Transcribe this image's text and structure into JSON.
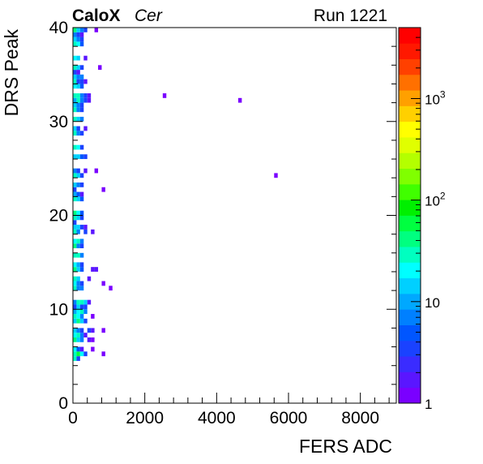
{
  "header": {
    "experiment": "CaloX",
    "channel": "Cer",
    "run": "Run 1221"
  },
  "chart_data": {
    "type": "heatmap",
    "xlabel": "FERS ADC",
    "ylabel": "DRS Peak",
    "xlim": [
      0,
      9000
    ],
    "ylim": [
      0,
      40
    ],
    "xticks": [
      "0",
      "2000",
      "4000",
      "6000",
      "8000"
    ],
    "yticks": [
      "0",
      "10",
      "20",
      "30",
      "40"
    ],
    "x_bin_width": 100,
    "y_bin_width": 0.5,
    "color_scale": "log",
    "z_range": [
      1,
      5000
    ],
    "colorbar_labels": [
      {
        "value": 1,
        "base": "1",
        "exp": ""
      },
      {
        "value": 10,
        "base": "10",
        "exp": ""
      },
      {
        "value": 100,
        "base": "10",
        "exp": "2"
      },
      {
        "value": 1000,
        "base": "10",
        "exp": "3"
      }
    ],
    "palette": [
      "#7a00ff",
      "#5a16ff",
      "#3a2cff",
      "#1a42ff",
      "#0056ff",
      "#0080ff",
      "#00a8ff",
      "#00d0ff",
      "#00ffff",
      "#00ffc0",
      "#00ff80",
      "#00ff40",
      "#00f000",
      "#40ff00",
      "#80ff00",
      "#b4ff00",
      "#e0ff00",
      "#ffff00",
      "#ffd000",
      "#ffa000",
      "#ff7000",
      "#ff4000",
      "#ff1800",
      "#ff0000"
    ],
    "cells": [
      {
        "x": 0,
        "y": 4.5,
        "v": 25
      },
      {
        "x": 100,
        "y": 4.5,
        "v": 3
      },
      {
        "x": 0,
        "y": 5,
        "v": 30
      },
      {
        "x": 100,
        "y": 5,
        "v": 60
      },
      {
        "x": 200,
        "y": 5,
        "v": 20
      },
      {
        "x": 300,
        "y": 5,
        "v": 3
      },
      {
        "x": 800,
        "y": 5,
        "v": 1
      },
      {
        "x": 0,
        "y": 5.5,
        "v": 20
      },
      {
        "x": 100,
        "y": 5.5,
        "v": 5
      },
      {
        "x": 200,
        "y": 5.5,
        "v": 2
      },
      {
        "x": 500,
        "y": 5.5,
        "v": 1
      },
      {
        "x": 0,
        "y": 6.5,
        "v": 40
      },
      {
        "x": 100,
        "y": 6.5,
        "v": 15
      },
      {
        "x": 200,
        "y": 6.5,
        "v": 8
      },
      {
        "x": 400,
        "y": 6.5,
        "v": 2
      },
      {
        "x": 500,
        "y": 6.5,
        "v": 1
      },
      {
        "x": 0,
        "y": 7,
        "v": 20
      },
      {
        "x": 100,
        "y": 7,
        "v": 25
      },
      {
        "x": 200,
        "y": 7,
        "v": 6
      },
      {
        "x": 300,
        "y": 7,
        "v": 2
      },
      {
        "x": 0,
        "y": 7.5,
        "v": 12
      },
      {
        "x": 100,
        "y": 7.5,
        "v": 8
      },
      {
        "x": 200,
        "y": 7.5,
        "v": 4
      },
      {
        "x": 400,
        "y": 7.5,
        "v": 3
      },
      {
        "x": 500,
        "y": 7.5,
        "v": 2
      },
      {
        "x": 800,
        "y": 7.5,
        "v": 1
      },
      {
        "x": 0,
        "y": 8.5,
        "v": 15
      },
      {
        "x": 100,
        "y": 8.5,
        "v": 40
      },
      {
        "x": 200,
        "y": 8.5,
        "v": 15
      },
      {
        "x": 300,
        "y": 8.5,
        "v": 4
      },
      {
        "x": 0,
        "y": 9,
        "v": 25
      },
      {
        "x": 100,
        "y": 9,
        "v": 20
      },
      {
        "x": 200,
        "y": 9,
        "v": 8
      },
      {
        "x": 500,
        "y": 9,
        "v": 1
      },
      {
        "x": 0,
        "y": 9.5,
        "v": 10
      },
      {
        "x": 100,
        "y": 9.5,
        "v": 20
      },
      {
        "x": 200,
        "y": 9.5,
        "v": 25
      },
      {
        "x": 300,
        "y": 9.5,
        "v": 6
      },
      {
        "x": 0,
        "y": 10,
        "v": 3
      },
      {
        "x": 100,
        "y": 10,
        "v": 12
      },
      {
        "x": 200,
        "y": 10,
        "v": 3
      },
      {
        "x": 300,
        "y": 10,
        "v": 4
      },
      {
        "x": 0,
        "y": 10.5,
        "v": 6
      },
      {
        "x": 100,
        "y": 10.5,
        "v": 30
      },
      {
        "x": 200,
        "y": 10.5,
        "v": 25
      },
      {
        "x": 300,
        "y": 10.5,
        "v": 15
      },
      {
        "x": 400,
        "y": 10.5,
        "v": 2
      },
      {
        "x": 0,
        "y": 12,
        "v": 25
      },
      {
        "x": 100,
        "y": 12,
        "v": 8
      },
      {
        "x": 200,
        "y": 12,
        "v": 6
      },
      {
        "x": 1000,
        "y": 12,
        "v": 1
      },
      {
        "x": 0,
        "y": 12.5,
        "v": 18
      },
      {
        "x": 100,
        "y": 12.5,
        "v": 6
      },
      {
        "x": 200,
        "y": 12.5,
        "v": 3
      },
      {
        "x": 800,
        "y": 12.5,
        "v": 1
      },
      {
        "x": 0,
        "y": 13,
        "v": 30
      },
      {
        "x": 100,
        "y": 13,
        "v": 12
      },
      {
        "x": 400,
        "y": 13,
        "v": 2
      },
      {
        "x": 0,
        "y": 14,
        "v": 35
      },
      {
        "x": 100,
        "y": 14,
        "v": 15
      },
      {
        "x": 200,
        "y": 14,
        "v": 5
      },
      {
        "x": 500,
        "y": 14,
        "v": 2
      },
      {
        "x": 600,
        "y": 14,
        "v": 2
      },
      {
        "x": 0,
        "y": 14.5,
        "v": 20
      },
      {
        "x": 100,
        "y": 14.5,
        "v": 10
      },
      {
        "x": 200,
        "y": 14.5,
        "v": 3
      },
      {
        "x": 0,
        "y": 15.5,
        "v": 25
      },
      {
        "x": 100,
        "y": 15.5,
        "v": 25
      },
      {
        "x": 200,
        "y": 15.5,
        "v": 8
      },
      {
        "x": 0,
        "y": 16.5,
        "v": 40
      },
      {
        "x": 100,
        "y": 16.5,
        "v": 8
      },
      {
        "x": 200,
        "y": 16.5,
        "v": 3
      },
      {
        "x": 0,
        "y": 17,
        "v": 20
      },
      {
        "x": 100,
        "y": 17,
        "v": 25
      },
      {
        "x": 200,
        "y": 17,
        "v": 6
      },
      {
        "x": 0,
        "y": 18,
        "v": 25
      },
      {
        "x": 100,
        "y": 18,
        "v": 6
      },
      {
        "x": 300,
        "y": 18,
        "v": 3
      },
      {
        "x": 500,
        "y": 18,
        "v": 2
      },
      {
        "x": 0,
        "y": 18.5,
        "v": 15
      },
      {
        "x": 100,
        "y": 18.5,
        "v": 12
      },
      {
        "x": 200,
        "y": 18.5,
        "v": 3
      },
      {
        "x": 300,
        "y": 18.5,
        "v": 2
      },
      {
        "x": 0,
        "y": 19,
        "v": 4
      },
      {
        "x": 0,
        "y": 19.5,
        "v": 30
      },
      {
        "x": 100,
        "y": 19.5,
        "v": 12
      },
      {
        "x": 200,
        "y": 19.5,
        "v": 4
      },
      {
        "x": 0,
        "y": 20,
        "v": 35
      },
      {
        "x": 100,
        "y": 20,
        "v": 20
      },
      {
        "x": 200,
        "y": 20,
        "v": 5
      },
      {
        "x": 0,
        "y": 21.5,
        "v": 30
      },
      {
        "x": 100,
        "y": 21.5,
        "v": 15
      },
      {
        "x": 200,
        "y": 21.5,
        "v": 5
      },
      {
        "x": 0,
        "y": 22,
        "v": 10
      },
      {
        "x": 100,
        "y": 22,
        "v": 5
      },
      {
        "x": 200,
        "y": 22,
        "v": 2
      },
      {
        "x": 0,
        "y": 22.5,
        "v": 3
      },
      {
        "x": 800,
        "y": 22.5,
        "v": 1
      },
      {
        "x": 0,
        "y": 23,
        "v": 12
      },
      {
        "x": 100,
        "y": 23,
        "v": 8
      },
      {
        "x": 200,
        "y": 23,
        "v": 3
      },
      {
        "x": 0,
        "y": 24,
        "v": 25
      },
      {
        "x": 100,
        "y": 24,
        "v": 15
      },
      {
        "x": 200,
        "y": 24,
        "v": 4
      },
      {
        "x": 0,
        "y": 24.5,
        "v": 6
      },
      {
        "x": 100,
        "y": 24.5,
        "v": 3
      },
      {
        "x": 300,
        "y": 24.5,
        "v": 2
      },
      {
        "x": 600,
        "y": 24.5,
        "v": 1
      },
      {
        "x": 0,
        "y": 26,
        "v": 15
      },
      {
        "x": 100,
        "y": 26,
        "v": 12
      },
      {
        "x": 200,
        "y": 26,
        "v": 5
      },
      {
        "x": 300,
        "y": 26,
        "v": 3
      },
      {
        "x": 0,
        "y": 27,
        "v": 30
      },
      {
        "x": 100,
        "y": 27,
        "v": 20
      },
      {
        "x": 200,
        "y": 27,
        "v": 4
      },
      {
        "x": 0,
        "y": 28.5,
        "v": 25
      },
      {
        "x": 100,
        "y": 28.5,
        "v": 8
      },
      {
        "x": 200,
        "y": 28.5,
        "v": 4
      },
      {
        "x": 0,
        "y": 29,
        "v": 15
      },
      {
        "x": 100,
        "y": 29,
        "v": 4
      },
      {
        "x": 300,
        "y": 29,
        "v": 2
      },
      {
        "x": 0,
        "y": 30,
        "v": 25
      },
      {
        "x": 100,
        "y": 30,
        "v": 15
      },
      {
        "x": 200,
        "y": 30,
        "v": 6
      },
      {
        "x": 0,
        "y": 31,
        "v": 30
      },
      {
        "x": 100,
        "y": 31,
        "v": 6
      },
      {
        "x": 200,
        "y": 31,
        "v": 3
      },
      {
        "x": 0,
        "y": 31.5,
        "v": 15
      },
      {
        "x": 100,
        "y": 31.5,
        "v": 8
      },
      {
        "x": 200,
        "y": 31.5,
        "v": 4
      },
      {
        "x": 0,
        "y": 32,
        "v": 10
      },
      {
        "x": 100,
        "y": 32,
        "v": 25
      },
      {
        "x": 200,
        "y": 32,
        "v": 8
      },
      {
        "x": 300,
        "y": 32,
        "v": 3
      },
      {
        "x": 400,
        "y": 32,
        "v": 2
      },
      {
        "x": 4600,
        "y": 32,
        "v": 1
      },
      {
        "x": 0,
        "y": 32.5,
        "v": 30
      },
      {
        "x": 100,
        "y": 32.5,
        "v": 25
      },
      {
        "x": 200,
        "y": 32.5,
        "v": 6
      },
      {
        "x": 300,
        "y": 32.5,
        "v": 3
      },
      {
        "x": 400,
        "y": 32.5,
        "v": 2
      },
      {
        "x": 2500,
        "y": 32.5,
        "v": 1
      },
      {
        "x": 0,
        "y": 33.5,
        "v": 20
      },
      {
        "x": 100,
        "y": 33.5,
        "v": 15
      },
      {
        "x": 200,
        "y": 33.5,
        "v": 5
      },
      {
        "x": 0,
        "y": 34,
        "v": 25
      },
      {
        "x": 100,
        "y": 34,
        "v": 4
      },
      {
        "x": 200,
        "y": 34,
        "v": 3
      },
      {
        "x": 300,
        "y": 34,
        "v": 2
      },
      {
        "x": 0,
        "y": 34.5,
        "v": 15
      },
      {
        "x": 100,
        "y": 34.5,
        "v": 8
      },
      {
        "x": 200,
        "y": 34.5,
        "v": 6
      },
      {
        "x": 0,
        "y": 35,
        "v": 3
      },
      {
        "x": 100,
        "y": 35,
        "v": 2
      },
      {
        "x": 0,
        "y": 35.5,
        "v": 30
      },
      {
        "x": 100,
        "y": 35.5,
        "v": 15
      },
      {
        "x": 200,
        "y": 35.5,
        "v": 4
      },
      {
        "x": 700,
        "y": 35.5,
        "v": 1
      },
      {
        "x": 0,
        "y": 36.5,
        "v": 20
      },
      {
        "x": 100,
        "y": 36.5,
        "v": 12
      },
      {
        "x": 300,
        "y": 36.5,
        "v": 2
      },
      {
        "x": 0,
        "y": 38,
        "v": 30
      },
      {
        "x": 100,
        "y": 38,
        "v": 20
      },
      {
        "x": 200,
        "y": 38,
        "v": 5
      },
      {
        "x": 0,
        "y": 38.5,
        "v": 15
      },
      {
        "x": 100,
        "y": 38.5,
        "v": 8
      },
      {
        "x": 200,
        "y": 38.5,
        "v": 3
      },
      {
        "x": 0,
        "y": 39,
        "v": 6
      },
      {
        "x": 100,
        "y": 39,
        "v": 4
      },
      {
        "x": 200,
        "y": 39,
        "v": 2
      },
      {
        "x": 0,
        "y": 39.5,
        "v": 40
      },
      {
        "x": 100,
        "y": 39.5,
        "v": 15
      },
      {
        "x": 200,
        "y": 39.5,
        "v": 6
      },
      {
        "x": 300,
        "y": 39.5,
        "v": 3
      },
      {
        "x": 600,
        "y": 39.5,
        "v": 1
      },
      {
        "x": 5600,
        "y": 24,
        "v": 1
      }
    ]
  }
}
